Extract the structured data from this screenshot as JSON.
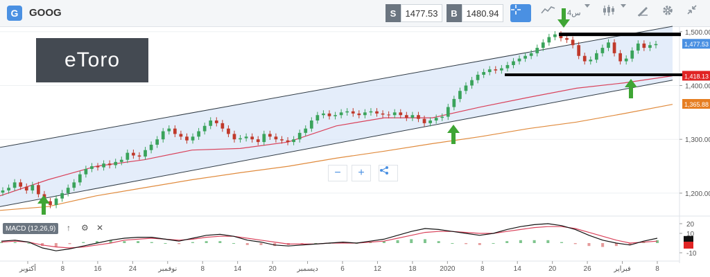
{
  "toolbar": {
    "badge": "G",
    "symbol": "GOOG",
    "sell_key": "S",
    "sell_price": "1477.53",
    "buy_key": "B",
    "buy_price": "1480.94",
    "period": "4س"
  },
  "logo": {
    "text": "eToro"
  },
  "chart_data": [
    {
      "type": "candlestick",
      "y_ticks": [
        "1,500.00",
        "1,400.00",
        "1,300.00",
        "1,200.00"
      ],
      "ylim": [
        1160,
        1510
      ],
      "x_tick_labels": [
        "أكتوبر",
        "8",
        "16",
        "24",
        "نوفمبر",
        "8",
        "14",
        "20",
        "ديسمبر",
        "6",
        "12",
        "18",
        "2020",
        "8",
        "14",
        "20",
        "26",
        "فبراير",
        "8"
      ],
      "price_badges": [
        {
          "label": "1,477.53",
          "value": 1477.53,
          "color": "#4a90e2"
        },
        {
          "label": "1,418.13",
          "value": 1418.13,
          "color": "#e02424"
        },
        {
          "label": "1,365.88",
          "value": 1365.88,
          "color": "#e67e22"
        }
      ],
      "close_series": [
        1205,
        1210,
        1220,
        1212,
        1205,
        1215,
        1198,
        1185,
        1178,
        1190,
        1200,
        1210,
        1220,
        1235,
        1245,
        1250,
        1248,
        1255,
        1252,
        1258,
        1262,
        1275,
        1270,
        1268,
        1280,
        1290,
        1300,
        1315,
        1320,
        1310,
        1305,
        1298,
        1305,
        1315,
        1325,
        1335,
        1330,
        1320,
        1310,
        1300,
        1302,
        1305,
        1300,
        1295,
        1310,
        1305,
        1300,
        1298,
        1295,
        1300,
        1312,
        1320,
        1335,
        1345,
        1348,
        1343,
        1345,
        1350,
        1352,
        1348,
        1345,
        1350,
        1352,
        1348,
        1346,
        1345,
        1350,
        1345,
        1340,
        1345,
        1338,
        1330,
        1335,
        1340,
        1342,
        1360,
        1375,
        1390,
        1400,
        1410,
        1420,
        1425,
        1430,
        1428,
        1432,
        1438,
        1445,
        1450,
        1455,
        1460,
        1470,
        1480,
        1490,
        1495,
        1488,
        1485,
        1475,
        1455,
        1445,
        1448,
        1460,
        1470,
        1480,
        1460,
        1445,
        1450,
        1465,
        1478,
        1470,
        1475,
        1477
      ],
      "series": [
        {
          "name": "MA-red",
          "color": "#d9415a",
          "values": [
            1195,
            1225,
            1250,
            1262,
            1280,
            1283,
            1295,
            1325,
            1340,
            1340,
            1360,
            1378,
            1395,
            1405,
            1418
          ]
        },
        {
          "name": "MA-orange",
          "color": "#e08a3c",
          "values": [
            1168,
            1175,
            1195,
            1210,
            1225,
            1238,
            1250,
            1265,
            1278,
            1292,
            1305,
            1320,
            1332,
            1348,
            1365
          ]
        }
      ],
      "channel": {
        "upper_start": 1285,
        "upper_end": 1510,
        "lower_start": 1175,
        "lower_end": 1410
      },
      "resistance": 1495,
      "support": 1420
    },
    {
      "type": "macd",
      "title": "MACD (12,26,9)",
      "y_ticks": [
        "20",
        "10",
        "-10"
      ],
      "ylim": [
        -15,
        25
      ],
      "macd_line": [
        2,
        3,
        1,
        -5,
        -8,
        -6,
        -3,
        0,
        3,
        5,
        6,
        6,
        4,
        2,
        5,
        8,
        9,
        7,
        3,
        1,
        -2,
        -3,
        -2,
        -1,
        0,
        1,
        0,
        2,
        4,
        8,
        12,
        15,
        14,
        12,
        10,
        8,
        10,
        14,
        17,
        19,
        20,
        18,
        14,
        8,
        3,
        0,
        -2,
        2,
        5
      ],
      "signal_line": [
        1,
        2,
        1,
        -2,
        -4,
        -5,
        -4,
        -2,
        0,
        3,
        4,
        5,
        4,
        3,
        4,
        6,
        7,
        7,
        5,
        3,
        1,
        -1,
        -1,
        -1,
        0,
        0,
        0,
        1,
        2,
        5,
        8,
        11,
        12,
        12,
        11,
        10,
        10,
        12,
        14,
        16,
        17,
        17,
        15,
        11,
        7,
        3,
        0,
        1,
        2
      ]
    }
  ]
}
